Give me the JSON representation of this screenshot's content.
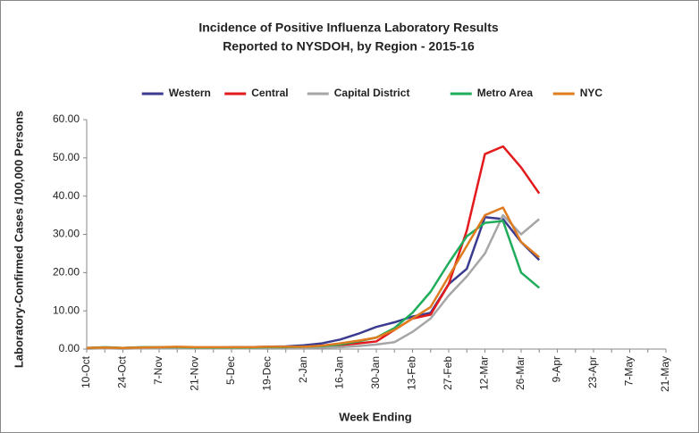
{
  "chart_data": {
    "type": "line",
    "title": "Incidence of Positive Influenza Laboratory Results",
    "subtitle": "Reported to NYSDOH, by Region - 2015-16",
    "x_label": "Week Ending",
    "y_label": "Laboratory-Confirmed Cases /100,000 Persons",
    "categories": [
      "10-Oct",
      null,
      "24-Oct",
      null,
      "7-Nov",
      null,
      "21-Nov",
      null,
      "5-Dec",
      null,
      "19-Dec",
      null,
      "2-Jan",
      null,
      "16-Jan",
      null,
      "30-Jan",
      null,
      "13-Feb",
      null,
      "27-Feb",
      null,
      "12-Mar",
      null,
      "26-Mar",
      null,
      "9-Apr",
      null,
      "23-Apr",
      null,
      "7-May",
      null,
      "21-May"
    ],
    "series": [
      {
        "name": "Western",
        "color": "#3b3b8f",
        "values": [
          0.3,
          0.4,
          0.3,
          0.4,
          0.4,
          0.5,
          0.4,
          0.4,
          0.5,
          0.5,
          0.6,
          0.7,
          1,
          1.5,
          2.5,
          4,
          5.8,
          7,
          8.5,
          9.5,
          17,
          21,
          34.5,
          34,
          28,
          23.3,
          null,
          null,
          null,
          null,
          null,
          null,
          null
        ]
      },
      {
        "name": "Central",
        "color": "#e31a1c",
        "values": [
          0.2,
          0.3,
          0.2,
          0.3,
          0.3,
          0.4,
          0.3,
          0.3,
          0.3,
          0.3,
          0.4,
          0.4,
          0.5,
          0.6,
          1,
          1.5,
          2,
          5,
          8,
          9,
          17,
          31,
          51,
          53,
          47.5,
          40.7,
          null,
          null,
          null,
          null,
          null,
          null,
          null
        ]
      },
      {
        "name": "Capital District",
        "color": "#a6a6a6",
        "values": [
          0.1,
          0.2,
          0.1,
          0.2,
          0.2,
          0.2,
          0.2,
          0.2,
          0.2,
          0.2,
          0.3,
          0.3,
          0.3,
          0.4,
          0.5,
          0.8,
          1.2,
          1.8,
          4.5,
          8,
          14,
          19,
          25,
          35,
          30,
          34,
          null,
          null,
          null,
          null,
          null,
          null,
          null
        ]
      },
      {
        "name": "Metro Area",
        "color": "#1fad5b",
        "values": [
          0.3,
          0.5,
          0.3,
          0.5,
          0.5,
          0.5,
          0.4,
          0.4,
          0.4,
          0.4,
          0.5,
          0.5,
          0.6,
          0.8,
          1.2,
          2,
          3,
          5.5,
          9.5,
          15,
          22.5,
          29.5,
          33,
          33.5,
          20,
          16,
          null,
          null,
          null,
          null,
          null,
          null,
          null
        ]
      },
      {
        "name": "NYC",
        "color": "#e07b1f",
        "values": [
          0.3,
          0.4,
          0.3,
          0.4,
          0.5,
          0.6,
          0.5,
          0.5,
          0.5,
          0.5,
          0.6,
          0.6,
          0.6,
          0.9,
          1.5,
          2.2,
          3,
          5,
          8,
          11,
          19,
          27,
          35,
          37,
          28,
          24,
          null,
          null,
          null,
          null,
          null,
          null,
          null
        ]
      }
    ],
    "ylim": [
      0,
      60
    ],
    "yticks": [
      {
        "value": 0,
        "label": "0.00"
      },
      {
        "value": 10,
        "label": "10.00"
      },
      {
        "value": 20,
        "label": "20.00"
      },
      {
        "value": 30,
        "label": "30.00"
      },
      {
        "value": 40,
        "label": "40.00"
      },
      {
        "value": 50,
        "label": "50.00"
      },
      {
        "value": 60,
        "label": "60.00"
      }
    ],
    "grid": false,
    "legend": "top"
  }
}
